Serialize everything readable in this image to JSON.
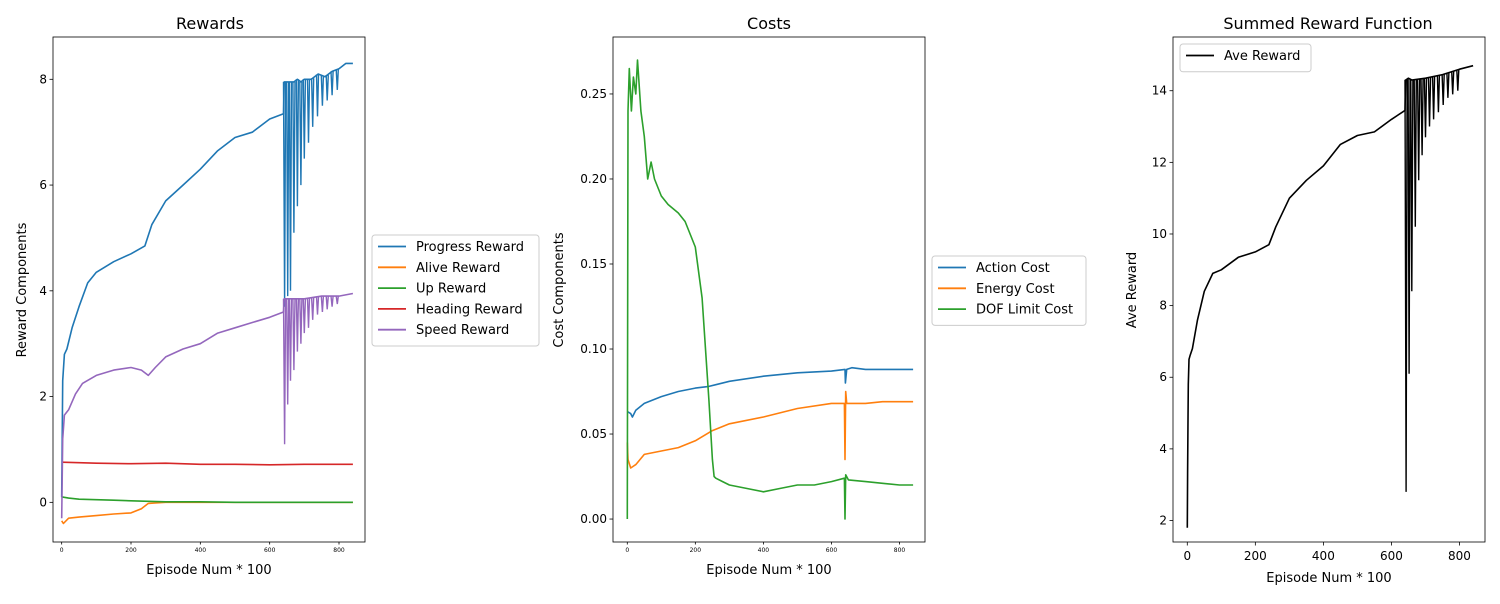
{
  "chart_data": [
    {
      "type": "line",
      "title": "Rewards",
      "xlabel": "Episode Num * 100",
      "ylabel": "Reward Components",
      "xlim": [
        -25,
        875
      ],
      "ylim": [
        -0.75,
        8.8
      ],
      "xticks": [
        0,
        200,
        400,
        600,
        800
      ],
      "yticks": [
        0,
        2,
        4,
        6,
        8
      ],
      "xtick_labels_small": true,
      "legend_position": "outside-right",
      "series": [
        {
          "name": "Progress Reward",
          "color": "#1f77b4",
          "x": [
            0,
            3,
            8,
            15,
            30,
            50,
            75,
            100,
            150,
            200,
            240,
            260,
            300,
            350,
            400,
            450,
            500,
            550,
            600,
            640,
            642,
            650,
            660,
            670,
            680,
            690,
            700,
            720,
            740,
            760,
            780,
            800,
            820,
            840
          ],
          "y": [
            0.1,
            2.3,
            2.8,
            2.9,
            3.3,
            3.7,
            4.15,
            4.35,
            4.55,
            4.7,
            4.85,
            5.25,
            5.7,
            6.0,
            6.3,
            6.65,
            6.9,
            7.0,
            7.25,
            7.35,
            7.95,
            7.95,
            7.95,
            7.95,
            8.0,
            7.95,
            8.0,
            8.0,
            8.1,
            8.05,
            8.15,
            8.2,
            8.3,
            8.3
          ],
          "dips": [
            {
              "x": 643,
              "y": 3.7
            },
            {
              "x": 652,
              "y": 3.9
            },
            {
              "x": 660,
              "y": 4.0
            },
            {
              "x": 670,
              "y": 5.1
            },
            {
              "x": 680,
              "y": 5.6
            },
            {
              "x": 690,
              "y": 6.0
            },
            {
              "x": 700,
              "y": 6.5
            },
            {
              "x": 712,
              "y": 6.8
            },
            {
              "x": 724,
              "y": 7.1
            },
            {
              "x": 738,
              "y": 7.3
            },
            {
              "x": 752,
              "y": 7.5
            },
            {
              "x": 766,
              "y": 7.6
            },
            {
              "x": 780,
              "y": 7.7
            },
            {
              "x": 795,
              "y": 7.8
            }
          ]
        },
        {
          "name": "Alive Reward",
          "color": "#ff7f0e",
          "x": [
            0,
            5,
            20,
            50,
            100,
            150,
            200,
            230,
            250,
            270,
            300,
            400,
            500,
            600,
            700,
            800,
            840
          ],
          "y": [
            -0.35,
            -0.4,
            -0.3,
            -0.28,
            -0.25,
            -0.22,
            -0.2,
            -0.12,
            -0.02,
            -0.01,
            0.0,
            0.0,
            0.0,
            0.0,
            0.0,
            0.0,
            0.0
          ]
        },
        {
          "name": "Up Reward",
          "color": "#2ca02c",
          "x": [
            0,
            3,
            20,
            50,
            100,
            150,
            200,
            250,
            300,
            400,
            500,
            600,
            700,
            800,
            840
          ],
          "y": [
            0.1,
            0.1,
            0.08,
            0.06,
            0.05,
            0.04,
            0.03,
            0.02,
            0.01,
            0.01,
            0.0,
            0.0,
            0.0,
            0.0,
            0.0
          ]
        },
        {
          "name": "Heading Reward",
          "color": "#d62728",
          "x": [
            0,
            50,
            100,
            200,
            300,
            400,
            500,
            600,
            700,
            800,
            840
          ],
          "y": [
            0.76,
            0.75,
            0.74,
            0.73,
            0.74,
            0.72,
            0.72,
            0.71,
            0.72,
            0.72,
            0.72
          ]
        },
        {
          "name": "Speed Reward",
          "color": "#9467bd",
          "x": [
            0,
            3,
            8,
            20,
            40,
            60,
            100,
            150,
            200,
            230,
            250,
            270,
            300,
            350,
            400,
            450,
            500,
            550,
            600,
            640,
            642,
            650,
            660,
            700,
            750,
            800,
            840
          ],
          "y": [
            -0.3,
            1.2,
            1.65,
            1.75,
            2.05,
            2.25,
            2.4,
            2.5,
            2.55,
            2.5,
            2.4,
            2.55,
            2.75,
            2.9,
            3.0,
            3.2,
            3.3,
            3.4,
            3.5,
            3.6,
            3.85,
            3.85,
            3.85,
            3.85,
            3.9,
            3.9,
            3.95
          ],
          "dips": [
            {
              "x": 643,
              "y": 1.1
            },
            {
              "x": 652,
              "y": 1.85
            },
            {
              "x": 660,
              "y": 2.3
            },
            {
              "x": 670,
              "y": 2.5
            },
            {
              "x": 680,
              "y": 2.85
            },
            {
              "x": 690,
              "y": 3.0
            },
            {
              "x": 700,
              "y": 3.2
            },
            {
              "x": 712,
              "y": 3.3
            },
            {
              "x": 724,
              "y": 3.45
            },
            {
              "x": 738,
              "y": 3.55
            },
            {
              "x": 752,
              "y": 3.6
            },
            {
              "x": 766,
              "y": 3.65
            },
            {
              "x": 780,
              "y": 3.7
            },
            {
              "x": 795,
              "y": 3.75
            }
          ]
        }
      ]
    },
    {
      "type": "line",
      "title": "Costs",
      "xlabel": "Episode Num * 100",
      "ylabel": "Cost Components",
      "xlim": [
        -42,
        875
      ],
      "ylim": [
        -0.0135,
        0.2835
      ],
      "xticks": [
        0,
        200,
        400,
        600,
        800
      ],
      "yticks": [
        0.0,
        0.05,
        0.1,
        0.15,
        0.2,
        0.25
      ],
      "ytick_labels": [
        "0.00",
        "0.05",
        "0.10",
        "0.15",
        "0.20",
        "0.25"
      ],
      "xtick_labels_small": true,
      "legend_position": "outside-right",
      "series": [
        {
          "name": "Action Cost",
          "color": "#1f77b4",
          "x": [
            0,
            2,
            10,
            15,
            25,
            50,
            100,
            150,
            200,
            240,
            260,
            300,
            400,
            500,
            600,
            640,
            641,
            645,
            660,
            700,
            750,
            800,
            840
          ],
          "y": [
            0.063,
            0.063,
            0.062,
            0.06,
            0.064,
            0.068,
            0.072,
            0.075,
            0.077,
            0.078,
            0.079,
            0.081,
            0.084,
            0.086,
            0.087,
            0.088,
            0.08,
            0.088,
            0.089,
            0.088,
            0.088,
            0.088,
            0.088
          ]
        },
        {
          "name": "Energy Cost",
          "color": "#ff7f0e",
          "x": [
            0,
            2,
            10,
            25,
            50,
            100,
            150,
            200,
            250,
            300,
            400,
            500,
            600,
            638,
            640,
            642,
            645,
            660,
            700,
            750,
            800,
            840
          ],
          "y": [
            0.045,
            0.035,
            0.03,
            0.032,
            0.038,
            0.04,
            0.042,
            0.046,
            0.052,
            0.056,
            0.06,
            0.065,
            0.068,
            0.068,
            0.035,
            0.075,
            0.068,
            0.068,
            0.068,
            0.069,
            0.069,
            0.069
          ]
        },
        {
          "name": "DOF Limit Cost",
          "color": "#2ca02c",
          "x": [
            0,
            2,
            6,
            12,
            18,
            25,
            30,
            40,
            50,
            60,
            70,
            80,
            100,
            120,
            150,
            170,
            200,
            220,
            240,
            250,
            255,
            260,
            280,
            300,
            350,
            400,
            450,
            500,
            550,
            600,
            638,
            640,
            642,
            650,
            700,
            750,
            800,
            840
          ],
          "y": [
            0.0,
            0.24,
            0.265,
            0.24,
            0.26,
            0.25,
            0.27,
            0.24,
            0.225,
            0.2,
            0.21,
            0.2,
            0.19,
            0.185,
            0.18,
            0.175,
            0.16,
            0.13,
            0.07,
            0.035,
            0.025,
            0.024,
            0.022,
            0.02,
            0.018,
            0.016,
            0.018,
            0.02,
            0.02,
            0.022,
            0.024,
            0.0,
            0.026,
            0.023,
            0.022,
            0.021,
            0.02,
            0.02
          ]
        }
      ]
    },
    {
      "type": "line",
      "title": "Summed Reward Function",
      "xlabel": "Episode Num * 100",
      "ylabel": "Ave Reward",
      "xlim": [
        -42,
        875
      ],
      "ylim": [
        1.4,
        15.5
      ],
      "xticks": [
        0,
        200,
        400,
        600,
        800
      ],
      "yticks": [
        2,
        4,
        6,
        8,
        10,
        12,
        14
      ],
      "legend_position": "upper left",
      "series": [
        {
          "name": "Ave Reward",
          "color": "#000000",
          "x": [
            0,
            1,
            2,
            3,
            5,
            8,
            15,
            30,
            50,
            75,
            100,
            150,
            200,
            240,
            260,
            300,
            350,
            400,
            450,
            500,
            550,
            600,
            640,
            642,
            650,
            660,
            700,
            750,
            800,
            840
          ],
          "y": [
            1.8,
            3.3,
            4.8,
            5.8,
            6.5,
            6.6,
            6.8,
            7.6,
            8.4,
            8.9,
            9.0,
            9.35,
            9.5,
            9.7,
            10.2,
            11.0,
            11.5,
            11.9,
            12.5,
            12.75,
            12.85,
            13.2,
            13.45,
            14.3,
            14.35,
            14.3,
            14.35,
            14.45,
            14.6,
            14.7
          ],
          "dips": [
            {
              "x": 643,
              "y": 2.8
            },
            {
              "x": 652,
              "y": 6.1
            },
            {
              "x": 660,
              "y": 8.4
            },
            {
              "x": 670,
              "y": 10.2
            },
            {
              "x": 680,
              "y": 11.5
            },
            {
              "x": 690,
              "y": 12.2
            },
            {
              "x": 700,
              "y": 12.7
            },
            {
              "x": 712,
              "y": 13.0
            },
            {
              "x": 724,
              "y": 13.2
            },
            {
              "x": 738,
              "y": 13.4
            },
            {
              "x": 752,
              "y": 13.6
            },
            {
              "x": 766,
              "y": 13.8
            },
            {
              "x": 780,
              "y": 13.9
            },
            {
              "x": 795,
              "y": 14.0
            }
          ]
        }
      ]
    }
  ]
}
